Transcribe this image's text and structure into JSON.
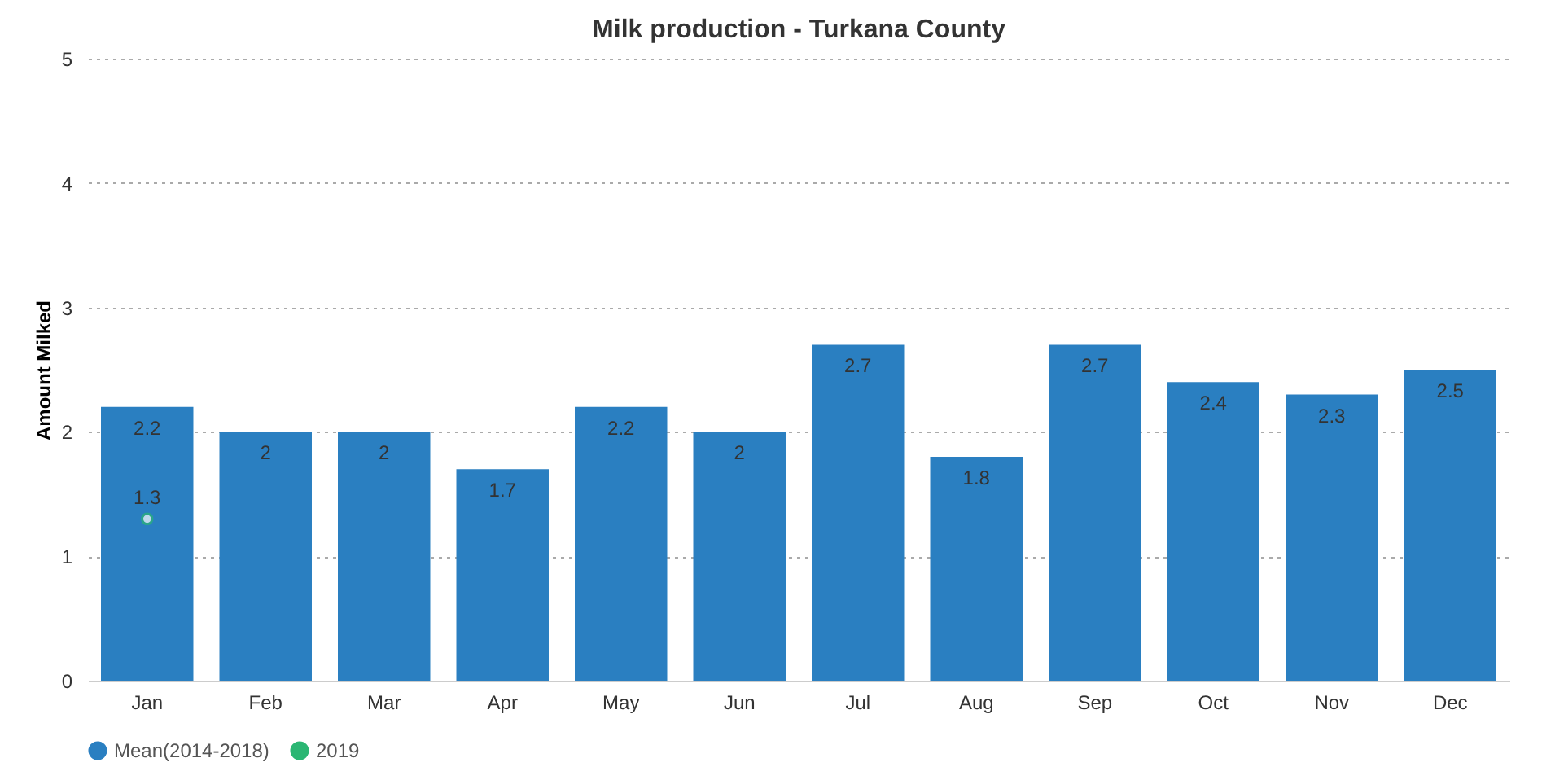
{
  "chart_data": {
    "type": "bar",
    "title": "Milk production - Turkana County",
    "ylabel": "Amount Milked",
    "categories": [
      "Jan",
      "Feb",
      "Mar",
      "Apr",
      "May",
      "Jun",
      "Jul",
      "Aug",
      "Sep",
      "Oct",
      "Nov",
      "Dec"
    ],
    "series": [
      {
        "name": "Mean(2014-2018)",
        "color": "#2a7fc1",
        "values": [
          2.2,
          2,
          2,
          1.7,
          2.2,
          2,
          2.7,
          1.8,
          2.7,
          2.4,
          2.3,
          2.5
        ]
      },
      {
        "name": "2019",
        "type": "scatter",
        "color": "#2bb673",
        "values": [
          1.3,
          null,
          null,
          null,
          null,
          null,
          null,
          null,
          null,
          null,
          null,
          null
        ]
      }
    ],
    "ylim": [
      0,
      5
    ],
    "yticks": [
      0,
      1,
      2,
      3,
      4,
      5
    ],
    "grid": "y",
    "legend": "bottom",
    "data_labels": true,
    "marker": "circle"
  }
}
